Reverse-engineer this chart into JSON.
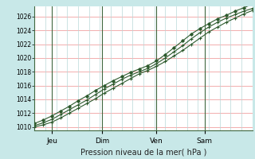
{
  "xlabel": "Pression niveau de la mer( hPa )",
  "bg_color": "#c8e8e8",
  "plot_bg_color": "#ffffff",
  "grid_color_h": "#f0a0a0",
  "grid_color_v": "#b8d8d8",
  "day_line_color": "#406840",
  "line_color": "#2d5a2d",
  "marker_color": "#2d5a2d",
  "ylim": [
    1009.5,
    1027.5
  ],
  "yticks": [
    1010,
    1012,
    1014,
    1016,
    1018,
    1020,
    1022,
    1024,
    1026
  ],
  "day_positions": [
    0.08,
    0.31,
    0.56,
    0.78
  ],
  "day_labels": [
    "Jeu",
    "Dim",
    "Ven",
    "Sam"
  ],
  "n_vcols": 20,
  "line1_x": [
    0.0,
    0.04,
    0.08,
    0.12,
    0.16,
    0.2,
    0.24,
    0.28,
    0.32,
    0.36,
    0.4,
    0.44,
    0.48,
    0.52,
    0.56,
    0.6,
    0.64,
    0.68,
    0.72,
    0.76,
    0.8,
    0.84,
    0.88,
    0.92,
    0.96,
    1.0
  ],
  "line1_y": [
    1010.0,
    1010.3,
    1010.7,
    1011.3,
    1012.0,
    1012.7,
    1013.4,
    1014.1,
    1014.9,
    1015.6,
    1016.3,
    1017.0,
    1017.7,
    1018.2,
    1018.8,
    1019.5,
    1020.3,
    1021.1,
    1022.0,
    1022.9,
    1023.8,
    1024.5,
    1025.2,
    1025.8,
    1026.4,
    1026.9
  ],
  "line2_x": [
    0.0,
    0.04,
    0.08,
    0.12,
    0.16,
    0.2,
    0.24,
    0.28,
    0.32,
    0.36,
    0.4,
    0.44,
    0.48,
    0.52,
    0.56,
    0.6,
    0.64,
    0.68,
    0.72,
    0.76,
    0.8,
    0.84,
    0.88,
    0.92,
    0.96,
    1.0
  ],
  "line2_y": [
    1010.2,
    1010.6,
    1011.1,
    1011.8,
    1012.5,
    1013.2,
    1013.9,
    1014.7,
    1015.5,
    1016.2,
    1016.9,
    1017.5,
    1018.0,
    1018.5,
    1019.2,
    1020.0,
    1020.9,
    1021.8,
    1022.8,
    1023.7,
    1024.5,
    1025.2,
    1025.8,
    1026.3,
    1026.8,
    1027.2
  ],
  "line3_x": [
    0.0,
    0.04,
    0.08,
    0.12,
    0.16,
    0.2,
    0.24,
    0.28,
    0.32,
    0.36,
    0.4,
    0.44,
    0.48,
    0.52,
    0.56,
    0.6,
    0.64,
    0.68,
    0.72,
    0.76,
    0.8,
    0.84,
    0.88,
    0.92,
    0.96,
    1.0
  ],
  "line3_y": [
    1010.5,
    1011.0,
    1011.6,
    1012.3,
    1013.0,
    1013.8,
    1014.5,
    1015.3,
    1016.0,
    1016.7,
    1017.3,
    1017.9,
    1018.4,
    1018.9,
    1019.6,
    1020.5,
    1021.5,
    1022.5,
    1023.5,
    1024.3,
    1025.0,
    1025.7,
    1026.2,
    1026.8,
    1027.3,
    1027.8
  ]
}
